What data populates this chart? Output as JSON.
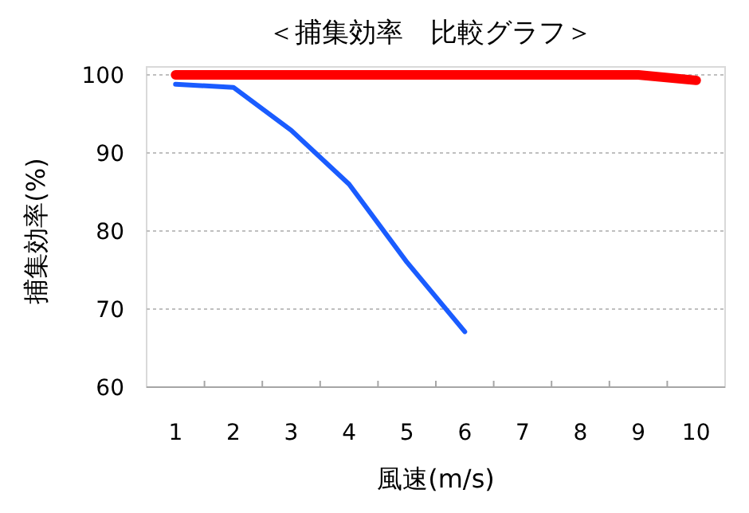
{
  "chart_data": {
    "type": "line",
    "title": "＜捕集効率　比較グラフ＞",
    "xlabel": "風速(m/s)",
    "ylabel": "捕集効率(%)",
    "categories": [
      "1",
      "2",
      "3",
      "4",
      "5",
      "6",
      "7",
      "8",
      "9",
      "10"
    ],
    "series": [
      {
        "color": "#ff0000",
        "values": [
          100,
          100,
          100,
          100,
          100,
          100,
          100,
          100,
          100,
          99.3
        ]
      },
      {
        "color": "#1a5cff",
        "values": [
          98.8,
          98.4,
          92.9,
          86,
          76,
          67.1,
          null,
          null,
          null,
          null
        ]
      }
    ],
    "ylim": [
      60,
      100
    ],
    "yticks": [
      60,
      70,
      80,
      90,
      100
    ],
    "grid": "y",
    "marker": "none",
    "line_style": "solid"
  }
}
